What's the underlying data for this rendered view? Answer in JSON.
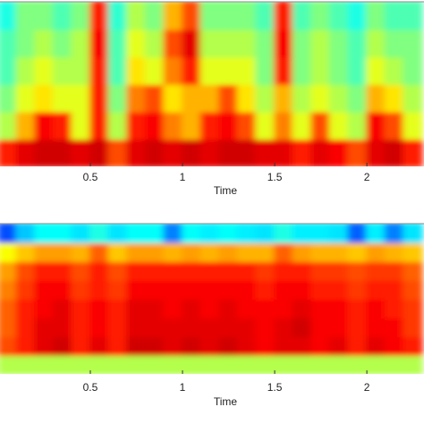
{
  "chart_data": [
    {
      "type": "heatmap",
      "xlabel": "Time",
      "x": [
        0.05,
        0.15,
        0.25,
        0.35,
        0.45,
        0.55,
        0.65,
        0.75,
        0.85,
        0.95,
        1.05,
        1.15,
        1.25,
        1.35,
        1.45,
        1.55,
        1.65,
        1.75,
        1.85,
        1.95,
        2.05,
        2.15,
        2.25
      ],
      "xlim": [
        0.01,
        2.31
      ],
      "xticks": [
        0.5,
        1,
        1.5,
        2
      ],
      "colormap": "jet",
      "zlim": [
        0,
        1
      ],
      "values": [
        [
          0.85,
          0.9,
          0.92,
          0.92,
          0.9,
          0.92,
          0.8,
          0.9,
          0.92,
          0.9,
          0.92,
          0.9,
          0.92,
          0.92,
          0.9,
          0.9,
          0.85,
          0.9,
          0.88,
          0.8,
          0.9,
          0.92,
          0.85
        ],
        [
          0.55,
          0.7,
          0.88,
          0.85,
          0.6,
          0.85,
          0.55,
          0.85,
          0.88,
          0.75,
          0.7,
          0.85,
          0.88,
          0.8,
          0.6,
          0.75,
          0.6,
          0.8,
          0.6,
          0.55,
          0.88,
          0.8,
          0.6
        ],
        [
          0.5,
          0.6,
          0.65,
          0.6,
          0.6,
          0.85,
          0.5,
          0.75,
          0.8,
          0.65,
          0.7,
          0.7,
          0.8,
          0.65,
          0.55,
          0.7,
          0.55,
          0.6,
          0.55,
          0.5,
          0.7,
          0.65,
          0.55
        ],
        [
          0.45,
          0.55,
          0.6,
          0.55,
          0.55,
          0.85,
          0.45,
          0.65,
          0.6,
          0.75,
          0.85,
          0.6,
          0.6,
          0.6,
          0.5,
          0.85,
          0.5,
          0.55,
          0.5,
          0.45,
          0.6,
          0.55,
          0.5
        ],
        [
          0.45,
          0.5,
          0.55,
          0.5,
          0.55,
          0.88,
          0.45,
          0.6,
          0.55,
          0.8,
          0.9,
          0.55,
          0.55,
          0.55,
          0.5,
          0.88,
          0.5,
          0.55,
          0.5,
          0.45,
          0.55,
          0.5,
          0.5
        ],
        [
          0.4,
          0.5,
          0.5,
          0.45,
          0.5,
          0.85,
          0.42,
          0.55,
          0.5,
          0.7,
          0.8,
          0.5,
          0.5,
          0.5,
          0.45,
          0.85,
          0.45,
          0.5,
          0.45,
          0.4,
          0.5,
          0.45,
          0.45
        ]
      ]
    },
    {
      "type": "heatmap",
      "xlabel": "Time",
      "x": [
        0.05,
        0.15,
        0.25,
        0.35,
        0.45,
        0.55,
        0.65,
        0.75,
        0.85,
        0.95,
        1.05,
        1.15,
        1.25,
        1.35,
        1.45,
        1.55,
        1.65,
        1.75,
        1.85,
        1.95,
        2.05,
        2.15,
        2.25
      ],
      "xlim": [
        0.01,
        2.31
      ],
      "xticks": [
        0.5,
        1,
        1.5,
        2
      ],
      "colormap": "jet",
      "zlim": [
        0,
        1
      ],
      "values": [
        [
          0.55,
          0.55,
          0.55,
          0.55,
          0.55,
          0.55,
          0.55,
          0.55,
          0.55,
          0.55,
          0.55,
          0.55,
          0.55,
          0.55,
          0.55,
          0.55,
          0.55,
          0.55,
          0.55,
          0.55,
          0.55,
          0.55,
          0.55
        ],
        [
          0.8,
          0.85,
          0.9,
          0.92,
          0.85,
          0.9,
          0.85,
          0.92,
          0.92,
          0.9,
          0.92,
          0.9,
          0.92,
          0.9,
          0.88,
          0.9,
          0.9,
          0.88,
          0.9,
          0.85,
          0.9,
          0.88,
          0.85
        ],
        [
          0.78,
          0.85,
          0.9,
          0.9,
          0.85,
          0.88,
          0.85,
          0.9,
          0.9,
          0.9,
          0.9,
          0.9,
          0.9,
          0.9,
          0.88,
          0.9,
          0.92,
          0.88,
          0.88,
          0.85,
          0.88,
          0.88,
          0.82
        ],
        [
          0.78,
          0.85,
          0.88,
          0.9,
          0.85,
          0.88,
          0.85,
          0.9,
          0.9,
          0.88,
          0.9,
          0.88,
          0.9,
          0.88,
          0.88,
          0.88,
          0.9,
          0.88,
          0.88,
          0.85,
          0.88,
          0.85,
          0.82
        ],
        [
          0.75,
          0.82,
          0.88,
          0.88,
          0.82,
          0.85,
          0.82,
          0.88,
          0.88,
          0.88,
          0.88,
          0.88,
          0.88,
          0.88,
          0.85,
          0.88,
          0.88,
          0.85,
          0.85,
          0.82,
          0.85,
          0.85,
          0.8
        ],
        [
          0.72,
          0.8,
          0.85,
          0.85,
          0.8,
          0.85,
          0.8,
          0.85,
          0.85,
          0.85,
          0.85,
          0.85,
          0.85,
          0.85,
          0.82,
          0.85,
          0.85,
          0.82,
          0.82,
          0.8,
          0.82,
          0.82,
          0.78
        ],
        [
          0.62,
          0.68,
          0.72,
          0.72,
          0.7,
          0.78,
          0.68,
          0.72,
          0.72,
          0.7,
          0.72,
          0.7,
          0.72,
          0.7,
          0.7,
          0.78,
          0.72,
          0.7,
          0.7,
          0.68,
          0.72,
          0.7,
          0.68
        ],
        [
          0.2,
          0.32,
          0.38,
          0.38,
          0.35,
          0.4,
          0.35,
          0.38,
          0.38,
          0.25,
          0.38,
          0.36,
          0.38,
          0.36,
          0.35,
          0.4,
          0.36,
          0.36,
          0.35,
          0.22,
          0.36,
          0.25,
          0.35
        ]
      ]
    }
  ]
}
